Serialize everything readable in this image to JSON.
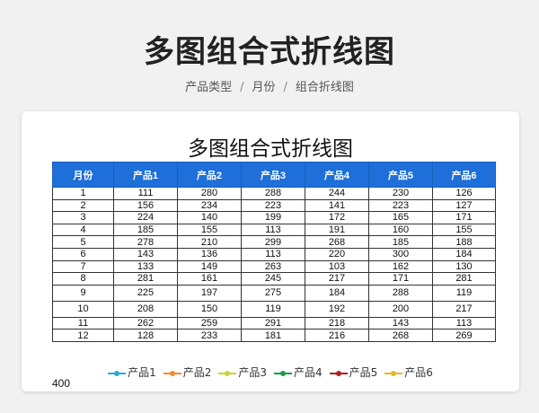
{
  "page": {
    "title": "多图组合式折线图",
    "breadcrumb": [
      "产品类型",
      "月份",
      "组合折线图"
    ]
  },
  "sheet": {
    "title": "多图组合式折线图",
    "columns": [
      "月份",
      "产品1",
      "产品2",
      "产品3",
      "产品4",
      "产品5",
      "产品6"
    ],
    "rows": [
      [
        "1",
        "111",
        "280",
        "288",
        "244",
        "230",
        "126"
      ],
      [
        "2",
        "156",
        "234",
        "223",
        "141",
        "223",
        "127"
      ],
      [
        "3",
        "224",
        "140",
        "199",
        "172",
        "165",
        "171"
      ],
      [
        "4",
        "185",
        "155",
        "113",
        "191",
        "160",
        "155"
      ],
      [
        "5",
        "278",
        "210",
        "299",
        "268",
        "185",
        "188"
      ],
      [
        "6",
        "143",
        "136",
        "113",
        "220",
        "300",
        "184"
      ],
      [
        "7",
        "133",
        "149",
        "263",
        "103",
        "162",
        "130"
      ],
      [
        "8",
        "281",
        "161",
        "245",
        "217",
        "171",
        "281"
      ],
      [
        "9",
        "225",
        "197",
        "275",
        "184",
        "288",
        "119"
      ],
      [
        "10",
        "208",
        "150",
        "119",
        "192",
        "200",
        "217"
      ],
      [
        "11",
        "262",
        "259",
        "291",
        "218",
        "143",
        "113"
      ],
      [
        "12",
        "128",
        "233",
        "181",
        "216",
        "268",
        "269"
      ]
    ]
  },
  "chart_data": {
    "type": "line",
    "categories": [
      "1",
      "2",
      "3",
      "4",
      "5",
      "6",
      "7",
      "8",
      "9",
      "10",
      "11",
      "12"
    ],
    "series": [
      {
        "name": "产品1",
        "color": "#2aa6dc",
        "values": [
          111,
          156,
          224,
          185,
          278,
          143,
          133,
          281,
          225,
          208,
          262,
          128
        ]
      },
      {
        "name": "产品2",
        "color": "#f28c28",
        "values": [
          280,
          234,
          140,
          155,
          210,
          136,
          149,
          161,
          197,
          150,
          259,
          233
        ]
      },
      {
        "name": "产品3",
        "color": "#c8d62f",
        "values": [
          288,
          223,
          199,
          113,
          299,
          113,
          263,
          245,
          275,
          119,
          291,
          181
        ]
      },
      {
        "name": "产品4",
        "color": "#1a9b4b",
        "values": [
          244,
          141,
          172,
          191,
          268,
          220,
          103,
          217,
          184,
          192,
          218,
          216
        ]
      },
      {
        "name": "产品5",
        "color": "#b0201e",
        "values": [
          230,
          223,
          165,
          160,
          185,
          300,
          162,
          171,
          288,
          200,
          143,
          268
        ]
      },
      {
        "name": "产品6",
        "color": "#e8b923",
        "values": [
          126,
          127,
          171,
          155,
          188,
          184,
          130,
          281,
          119,
          217,
          113,
          269
        ]
      }
    ],
    "legend": "top-center",
    "y_tick_visible": "400"
  },
  "colors": {
    "header_blue": "#1e6fd9",
    "page_bg": "#f1f1f1"
  }
}
